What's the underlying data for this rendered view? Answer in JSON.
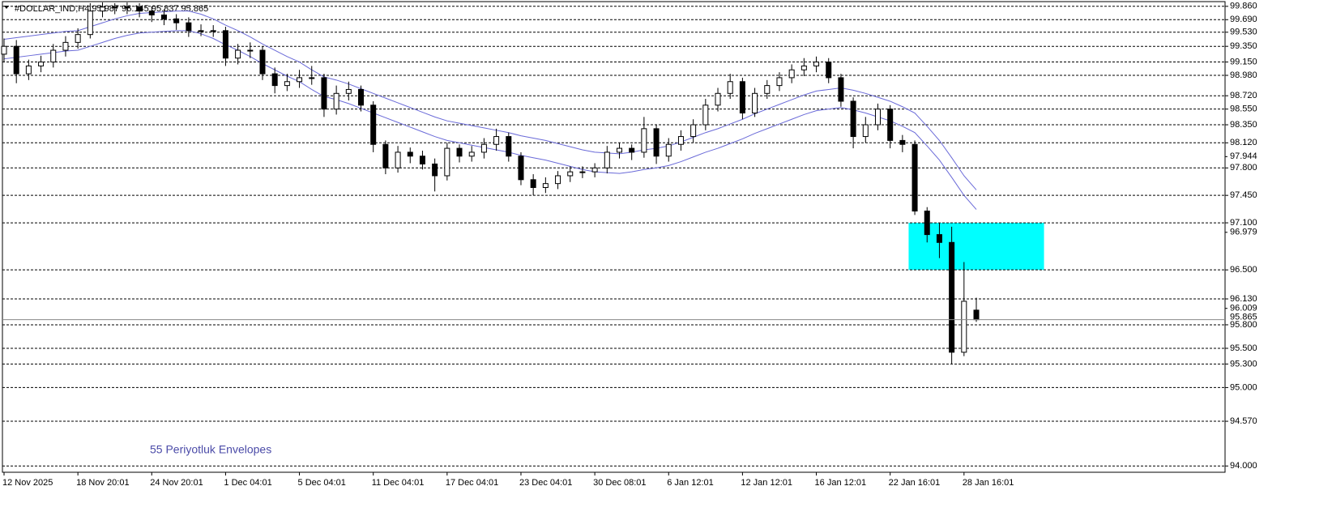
{
  "chart_data": {
    "type": "candlestick",
    "symbol": "#DOLLAR_IND,H4",
    "annotation": "55 Periyotluk Envelopes",
    "categories": [
      "12 Nov 2025",
      null,
      null,
      null,
      null,
      null,
      "18 Nov 20:01",
      null,
      null,
      null,
      null,
      null,
      "24 Nov 20:01",
      null,
      null,
      null,
      null,
      null,
      "1 Dec 04:01",
      null,
      null,
      null,
      null,
      null,
      "5 Dec 04:01",
      null,
      null,
      null,
      null,
      null,
      "11 Dec 04:01",
      null,
      null,
      null,
      null,
      null,
      "17 Dec 04:01",
      null,
      null,
      null,
      null,
      null,
      "23 Dec 04:01",
      null,
      null,
      null,
      null,
      null,
      "30 Dec 08:01",
      null,
      null,
      null,
      null,
      null,
      "6 Jan 12:01",
      null,
      null,
      null,
      null,
      null,
      "12 Jan 12:01",
      null,
      null,
      null,
      null,
      null,
      "16 Jan 12:01",
      null,
      null,
      null,
      null,
      null,
      "22 Jan 16:01",
      null,
      null,
      null,
      null,
      null,
      "28 Jan 16:01",
      null
    ],
    "open": [
      99.25,
      99.35,
      99.0,
      99.1,
      99.15,
      99.3,
      99.4,
      99.5,
      99.8,
      99.85,
      99.85,
      99.85,
      99.8,
      99.75,
      99.7,
      99.65,
      99.55,
      99.55,
      99.55,
      99.2,
      99.3,
      99.3,
      99.0,
      98.85,
      98.9,
      98.95,
      98.95,
      98.55,
      98.75,
      98.8,
      98.6,
      98.1,
      97.8,
      98.0,
      97.95,
      97.85,
      97.7,
      98.05,
      97.95,
      98.0,
      98.1,
      98.2,
      97.95,
      97.65,
      97.55,
      97.6,
      97.7,
      97.75,
      97.75,
      97.8,
      98.0,
      98.05,
      98.0,
      98.3,
      97.95,
      98.1,
      98.2,
      98.35,
      98.6,
      98.75,
      98.9,
      98.5,
      98.75,
      98.85,
      98.95,
      99.05,
      99.1,
      99.15,
      98.95,
      98.65,
      98.2,
      98.35,
      98.55,
      98.15,
      98.1,
      97.25,
      96.95,
      96.85,
      95.45,
      95.987
    ],
    "high": [
      99.45,
      99.43,
      99.18,
      99.23,
      99.38,
      99.48,
      99.58,
      99.9,
      99.91,
      99.9,
      99.91,
      99.9,
      99.86,
      99.82,
      99.76,
      99.72,
      99.63,
      99.62,
      99.6,
      99.38,
      99.4,
      99.35,
      99.08,
      99.0,
      99.05,
      99.1,
      99.0,
      98.85,
      98.9,
      98.85,
      98.65,
      98.15,
      98.08,
      98.06,
      98.02,
      97.92,
      98.12,
      98.1,
      98.08,
      98.18,
      98.3,
      98.25,
      98.0,
      97.72,
      97.68,
      97.76,
      97.82,
      97.82,
      97.86,
      98.08,
      98.12,
      98.1,
      98.45,
      98.35,
      98.18,
      98.28,
      98.42,
      98.68,
      98.82,
      99.0,
      98.95,
      98.82,
      98.92,
      99.02,
      99.12,
      99.2,
      99.22,
      99.2,
      99.0,
      98.7,
      98.45,
      98.62,
      98.6,
      98.22,
      98.15,
      97.3,
      97.1,
      97.05,
      96.6,
      96.145
    ],
    "low": [
      99.15,
      98.88,
      98.92,
      99.02,
      99.08,
      99.22,
      99.32,
      99.45,
      99.72,
      99.76,
      99.76,
      99.72,
      99.66,
      99.62,
      99.56,
      99.47,
      99.48,
      99.47,
      99.1,
      99.12,
      99.2,
      98.92,
      98.75,
      98.78,
      98.82,
      98.86,
      98.45,
      98.48,
      98.66,
      98.52,
      98.0,
      97.72,
      97.74,
      97.86,
      97.78,
      97.5,
      97.64,
      97.87,
      97.88,
      97.92,
      98.02,
      97.88,
      97.58,
      97.45,
      97.48,
      97.53,
      97.62,
      97.67,
      97.68,
      97.73,
      97.92,
      97.9,
      97.93,
      97.85,
      97.88,
      98.02,
      98.12,
      98.28,
      98.52,
      98.68,
      98.42,
      98.45,
      98.68,
      98.78,
      98.88,
      98.97,
      99.02,
      98.88,
      98.58,
      98.05,
      98.12,
      98.28,
      98.05,
      98.0,
      97.2,
      96.85,
      96.65,
      95.3,
      95.4,
      95.837
    ],
    "close": [
      99.35,
      99.0,
      99.1,
      99.15,
      99.3,
      99.4,
      99.5,
      99.8,
      99.85,
      99.85,
      99.85,
      99.8,
      99.75,
      99.7,
      99.65,
      99.55,
      99.55,
      99.55,
      99.2,
      99.3,
      99.3,
      99.0,
      98.85,
      98.9,
      98.95,
      98.95,
      98.55,
      98.75,
      98.8,
      98.6,
      98.1,
      97.8,
      98.0,
      97.95,
      97.85,
      97.7,
      98.05,
      97.95,
      98.0,
      98.1,
      98.2,
      97.95,
      97.65,
      97.55,
      97.6,
      97.7,
      97.75,
      97.75,
      97.8,
      98.0,
      98.05,
      98.0,
      98.3,
      97.95,
      98.1,
      98.2,
      98.35,
      98.6,
      98.75,
      98.9,
      98.5,
      98.75,
      98.85,
      98.95,
      99.05,
      99.1,
      99.15,
      98.95,
      98.65,
      98.2,
      98.35,
      98.55,
      98.15,
      98.1,
      97.25,
      96.95,
      96.85,
      95.45,
      96.1,
      95.865
    ],
    "series": [
      {
        "color": "#6a6ad8",
        "values": [
          99.44,
          99.46,
          99.48,
          99.5,
          99.52,
          99.54,
          99.55,
          99.6,
          99.65,
          99.7,
          99.74,
          99.77,
          99.78,
          99.79,
          99.8,
          99.8,
          99.76,
          99.7,
          99.62,
          99.55,
          99.47,
          99.38,
          99.3,
          99.22,
          99.15,
          99.05,
          98.96,
          98.92,
          98.87,
          98.81,
          98.75,
          98.69,
          98.63,
          98.57,
          98.51,
          98.45,
          98.4,
          98.37,
          98.34,
          98.31,
          98.28,
          98.25,
          98.21,
          98.18,
          98.15,
          98.11,
          98.07,
          98.03,
          98.0,
          97.99,
          97.98,
          98.0,
          98.03,
          98.05,
          98.08,
          98.13,
          98.19,
          98.25,
          98.3,
          98.36,
          98.42,
          98.49,
          98.55,
          98.61,
          98.67,
          98.73,
          98.78,
          98.8,
          98.82,
          98.79,
          98.75,
          98.7,
          98.65,
          98.58,
          98.5,
          98.33,
          98.15,
          97.93,
          97.7,
          97.52
        ]
      },
      {
        "color": "#6a6ad8",
        "values": [
          99.19,
          99.21,
          99.23,
          99.25,
          99.27,
          99.29,
          99.3,
          99.35,
          99.4,
          99.45,
          99.49,
          99.52,
          99.53,
          99.54,
          99.55,
          99.55,
          99.51,
          99.45,
          99.37,
          99.3,
          99.22,
          99.13,
          99.05,
          98.97,
          98.9,
          98.8,
          98.71,
          98.67,
          98.62,
          98.56,
          98.5,
          98.44,
          98.38,
          98.32,
          98.26,
          98.2,
          98.15,
          98.12,
          98.09,
          98.06,
          98.03,
          98.0,
          97.96,
          97.93,
          97.9,
          97.86,
          97.82,
          97.78,
          97.75,
          97.74,
          97.73,
          97.75,
          97.78,
          97.8,
          97.83,
          97.88,
          97.94,
          98.0,
          98.05,
          98.11,
          98.17,
          98.24,
          98.3,
          98.36,
          98.42,
          98.48,
          98.53,
          98.55,
          98.57,
          98.54,
          98.5,
          98.45,
          98.4,
          98.33,
          98.25,
          98.08,
          97.9,
          97.68,
          97.45,
          97.27
        ]
      }
    ],
    "zone": {
      "from": 96.5,
      "to": 97.1,
      "color": "#00ffff"
    },
    "ylim": [
      93.92,
      99.92
    ],
    "yticks": [
      {
        "value": 99.86,
        "label": "99.860"
      },
      {
        "value": 99.69,
        "label": "99.690"
      },
      {
        "value": 99.53,
        "label": "99.530"
      },
      {
        "value": 99.35,
        "label": "99.350"
      },
      {
        "value": 99.15,
        "label": "99.150"
      },
      {
        "value": 98.98,
        "label": "98.980"
      },
      {
        "value": 98.72,
        "label": "98.720"
      },
      {
        "value": 98.55,
        "label": "98.550"
      },
      {
        "value": 98.35,
        "label": "98.350"
      },
      {
        "value": 98.12,
        "label": "98.120"
      },
      {
        "value": 97.8,
        "label": "97.800"
      },
      {
        "value": 97.45,
        "label": "97.450"
      },
      {
        "value": 97.1,
        "label": "97.100"
      },
      {
        "value": 96.5,
        "label": "96.500"
      },
      {
        "value": 96.13,
        "label": "96.130"
      },
      {
        "value": 95.8,
        "label": "95.800"
      },
      {
        "value": 95.5,
        "label": "95.500"
      },
      {
        "value": 95.3,
        "label": "95.300"
      },
      {
        "value": 95,
        "label": "95.000"
      },
      {
        "value": 94.57,
        "label": "94.570"
      },
      {
        "value": 94,
        "label": "94.000"
      }
    ],
    "scale_labels": [
      97.944,
      96.979,
      96.009
    ]
  }
}
